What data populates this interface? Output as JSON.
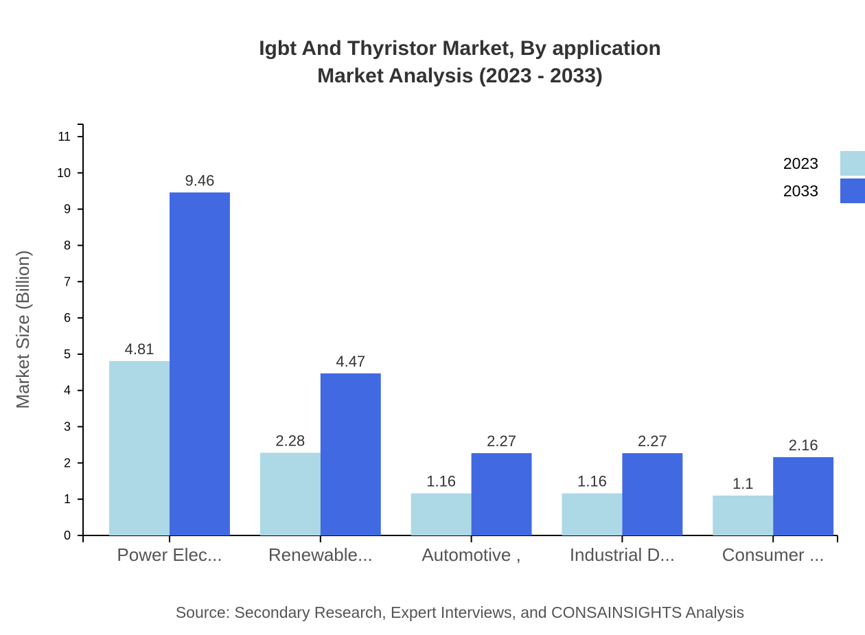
{
  "chart_data": {
    "type": "bar",
    "title": "Igbt And Thyristor Market, By application",
    "subtitle": "Market Analysis (2023 - 2033)",
    "ylabel": "Market Size (Billion)",
    "xlabel": "",
    "ylim": [
      0,
      11
    ],
    "yticks": [
      0,
      1,
      2,
      3,
      4,
      5,
      6,
      7,
      8,
      9,
      10,
      11
    ],
    "categories": [
      "Power Elec...",
      "Renewable...",
      "Automotive ,",
      "Industrial D...",
      "Consumer ..."
    ],
    "series": [
      {
        "name": "2023",
        "color": "#add8e6",
        "values": [
          4.81,
          2.28,
          1.16,
          1.16,
          1.1
        ]
      },
      {
        "name": "2033",
        "color": "#4169e1",
        "values": [
          9.46,
          4.47,
          2.27,
          2.27,
          2.16
        ]
      }
    ],
    "legend_position": "top-right",
    "grid": false,
    "source": "Source: Secondary Research, Expert Interviews, and CONSAINSIGHTS Analysis"
  }
}
